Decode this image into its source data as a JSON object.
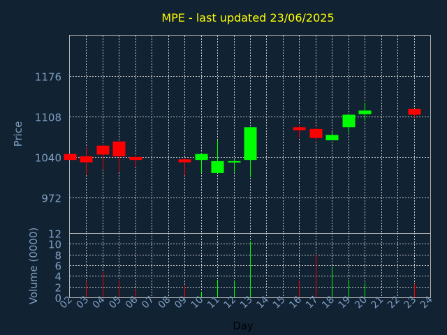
{
  "chart_data": {
    "type": "candlestick",
    "title": "MPE - last updated 23/06/2025",
    "title_color": "#ffff00",
    "ylabel_price": "Price",
    "ylabel_volume": "Volume (0000)",
    "xlabel": "Day",
    "up_color": "#00ff00",
    "down_color": "#ff0000",
    "grid": true,
    "price_ylim": [
      912,
      1244
    ],
    "price_ticks": [
      "1176",
      "1108",
      "1040",
      "972"
    ],
    "price_tick_values": [
      1176,
      1108,
      1040,
      972
    ],
    "volume_ylim": [
      0,
      12
    ],
    "volume_ticks": [
      "12",
      "10",
      "8",
      "6",
      "4",
      "2",
      "0"
    ],
    "volume_tick_values": [
      12,
      10,
      8,
      6,
      4,
      2,
      0
    ],
    "x_ticks": [
      "02",
      "03",
      "04",
      "05",
      "06",
      "07",
      "08",
      "09",
      "10",
      "11",
      "12",
      "13",
      "14",
      "15",
      "16",
      "17",
      "18",
      "19",
      "20",
      "21",
      "22",
      "23",
      "24"
    ],
    "candles": [
      {
        "idx": 0,
        "open": 1045,
        "close": 1035,
        "high": 1045,
        "low": 1035,
        "volume": 0
      },
      {
        "idx": 1,
        "open": 1041,
        "close": 1031,
        "high": 1056,
        "low": 1010,
        "volume": 3.0
      },
      {
        "idx": 2,
        "open": 1059,
        "close": 1044,
        "high": 1061,
        "low": 1018,
        "volume": 4.8
      },
      {
        "idx": 3,
        "open": 1066,
        "close": 1041,
        "high": 1066,
        "low": 1014,
        "volume": 3.2
      },
      {
        "idx": 4,
        "open": 1040,
        "close": 1035,
        "high": 1043,
        "low": 1024,
        "volume": 1.5
      },
      {
        "idx": 7,
        "open": 1036,
        "close": 1031,
        "high": 1038,
        "low": 1009,
        "volume": 2.2
      },
      {
        "idx": 8,
        "open": 1035,
        "close": 1045,
        "high": 1046,
        "low": 1013,
        "volume": 1.0
      },
      {
        "idx": 9,
        "open": 1013,
        "close": 1033,
        "high": 1068,
        "low": 1013,
        "volume": 3.3
      },
      {
        "idx": 10,
        "open": 1032,
        "close": 1033,
        "high": 1036,
        "low": 1013,
        "volume": 3.0
      },
      {
        "idx": 11,
        "open": 1035,
        "close": 1090,
        "high": 1090,
        "low": 1006,
        "volume": 10.5
      },
      {
        "idx": 14,
        "open": 1090,
        "close": 1085,
        "high": 1094,
        "low": 1072,
        "volume": 3.1
      },
      {
        "idx": 15,
        "open": 1087,
        "close": 1072,
        "high": 1089,
        "low": 1068,
        "volume": 8.0
      },
      {
        "idx": 16,
        "open": 1068,
        "close": 1077,
        "high": 1082,
        "low": 1068,
        "volume": 5.8
      },
      {
        "idx": 17,
        "open": 1090,
        "close": 1111,
        "high": 1111,
        "low": 1081,
        "volume": 3.3
      },
      {
        "idx": 18,
        "open": 1112,
        "close": 1118,
        "high": 1131,
        "low": 1101,
        "volume": 2.7
      },
      {
        "idx": 21,
        "open": 1121,
        "close": 1111,
        "high": 1121,
        "low": 1106,
        "volume": 2.5
      }
    ]
  }
}
